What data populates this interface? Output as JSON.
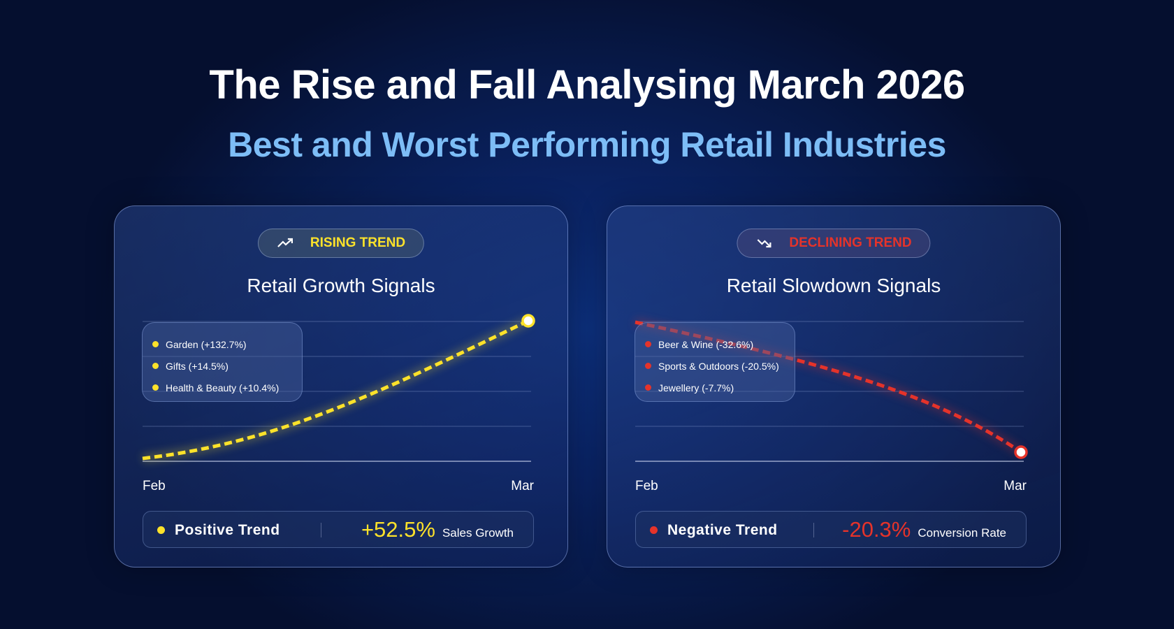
{
  "header": {
    "title": "The Rise and Fall Analysing March 2026",
    "subtitle": "Best and Worst Performing Retail Industries"
  },
  "colors": {
    "rising": "#fde22a",
    "declining": "#e5332a",
    "subtitle": "#7dbdf6"
  },
  "cards": [
    {
      "badge": "RISING TREND",
      "badge_icon": "trend-up-icon",
      "title": "Retail Growth Signals",
      "legend": [
        "Garden (+132.7%)",
        "Gifts (+14.5%)",
        "Health & Beauty (+10.4%)"
      ],
      "trend_label": "Positive Trend",
      "metric_value": "+52.5%",
      "metric_label": "Sales Growth"
    },
    {
      "badge": "DECLINING TREND",
      "badge_icon": "trend-down-icon",
      "title": "Retail Slowdown Signals",
      "legend": [
        "Beer & Wine (-32.6%)",
        "Sports & Outdoors (-20.5%)",
        "Jewellery (-7.7%)"
      ],
      "trend_label": "Negative Trend",
      "metric_value": "-20.3%",
      "metric_label": "Conversion Rate"
    }
  ],
  "chart_data": [
    {
      "type": "line",
      "title": "Retail Growth Signals",
      "categories": [
        "Feb",
        "Mar"
      ],
      "series": [
        {
          "name": "Sales Growth",
          "values": [
            0,
            52.5
          ]
        }
      ],
      "grid": true
    },
    {
      "type": "line",
      "title": "Retail Slowdown Signals",
      "categories": [
        "Feb",
        "Mar"
      ],
      "series": [
        {
          "name": "Conversion Rate",
          "values": [
            0,
            -20.3
          ]
        }
      ],
      "grid": true
    }
  ]
}
